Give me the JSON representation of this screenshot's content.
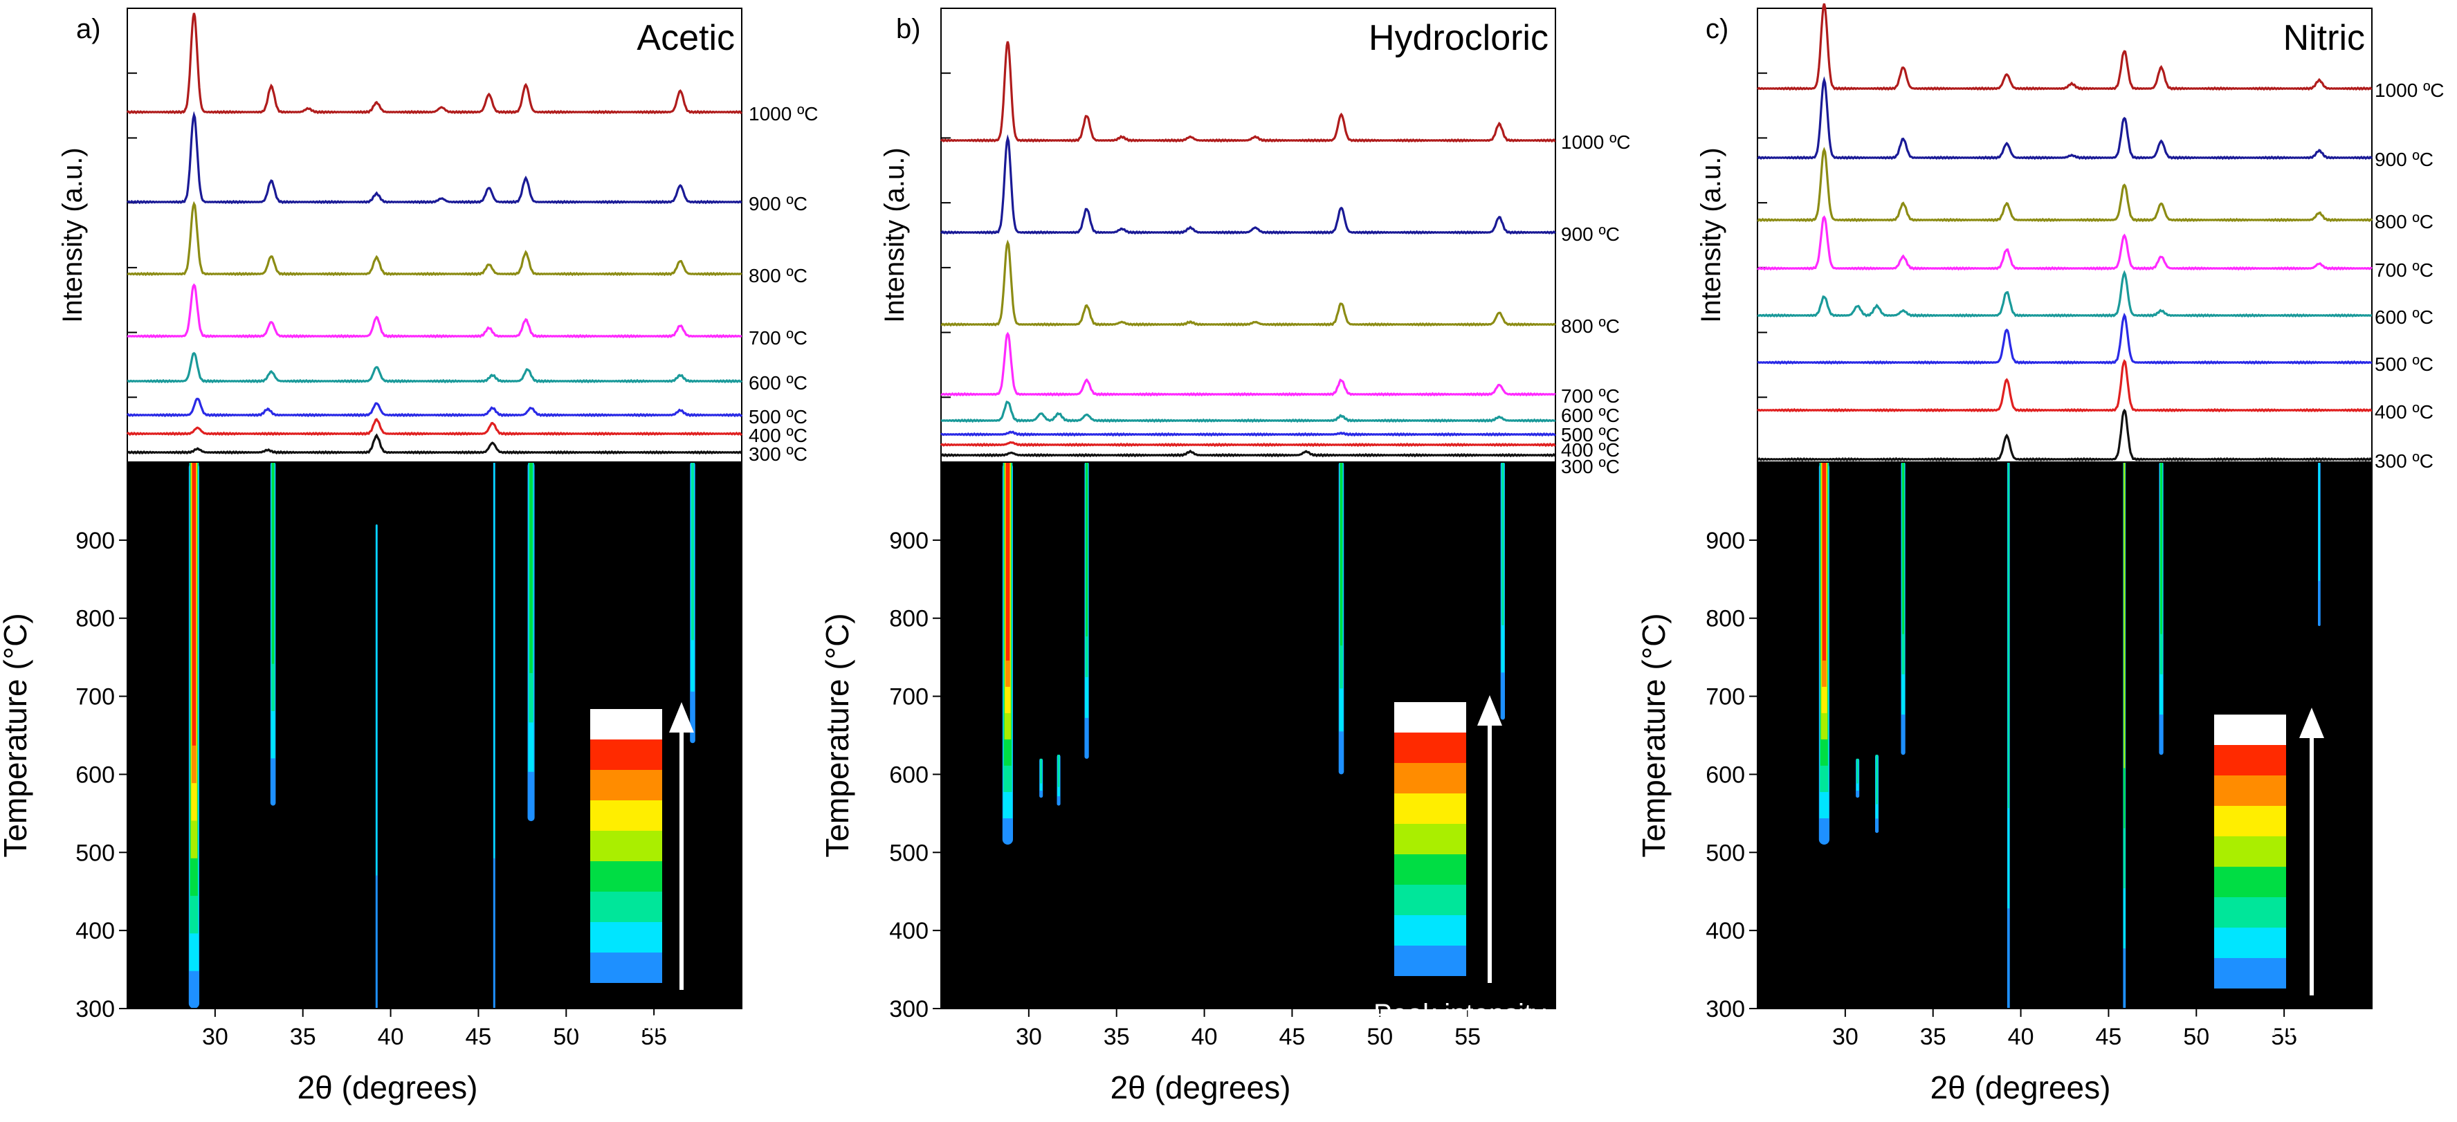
{
  "figure": {
    "xlabel": "2θ (degrees)",
    "xticks": [
      30,
      35,
      40,
      45,
      50,
      55
    ],
    "top_ylabel": "Intensity (a.u.)",
    "bottom_ylabel": "Temperature (°C)",
    "yticks": [
      300,
      400,
      500,
      600,
      700,
      800,
      900
    ],
    "legend_label": "Peak intensity",
    "xlim": [
      25,
      60
    ],
    "temp_lim": [
      300,
      1000
    ],
    "series_colors": {
      "300 ºC": "#111111",
      "400 ºC": "#e02020",
      "500 ºC": "#2a2ae6",
      "600 ºC": "#1a9a9a",
      "700 ºC": "#ff2aff",
      "800 ºC": "#8c8c14",
      "900 ºC": "#1a1a96",
      "1000 ºC": "#b01c1c"
    },
    "colormap": [
      "#1e90ff",
      "#00e5ff",
      "#00e69a",
      "#00dd44",
      "#aaee00",
      "#ffee00",
      "#ff8c00",
      "#ff2a00",
      "#ffffff"
    ]
  },
  "chart_data": [
    {
      "type": "line+heatmap",
      "panel_label": "a)",
      "title": "Acetic",
      "series": [
        {
          "name": "300 ºC",
          "peaks": [
            [
              29,
              0.15
            ],
            [
              33,
              0.1
            ],
            [
              39.2,
              0.7
            ],
            [
              45.8,
              0.4
            ]
          ]
        },
        {
          "name": "400 ºC",
          "peaks": [
            [
              29,
              0.25
            ],
            [
              39.2,
              0.6
            ],
            [
              45.8,
              0.45
            ]
          ]
        },
        {
          "name": "500 ºC",
          "peaks": [
            [
              29,
              0.7
            ],
            [
              33,
              0.25
            ],
            [
              39.2,
              0.5
            ],
            [
              45.8,
              0.3
            ],
            [
              48,
              0.3
            ],
            [
              56.5,
              0.2
            ]
          ]
        },
        {
          "name": "600 ºC",
          "peaks": [
            [
              28.8,
              1.2
            ],
            [
              33.2,
              0.4
            ],
            [
              39.2,
              0.6
            ],
            [
              45.8,
              0.25
            ],
            [
              47.8,
              0.5
            ],
            [
              56.5,
              0.25
            ]
          ]
        },
        {
          "name": "700 ºC",
          "peaks": [
            [
              28.8,
              2.2
            ],
            [
              33.2,
              0.6
            ],
            [
              39.2,
              0.8
            ],
            [
              45.6,
              0.35
            ],
            [
              47.7,
              0.7
            ],
            [
              56.5,
              0.45
            ]
          ]
        },
        {
          "name": "800 ºC",
          "peaks": [
            [
              28.8,
              3.0
            ],
            [
              33.2,
              0.75
            ],
            [
              39.2,
              0.7
            ],
            [
              45.6,
              0.4
            ],
            [
              47.7,
              0.9
            ],
            [
              56.5,
              0.55
            ]
          ]
        },
        {
          "name": "900 ºC",
          "peaks": [
            [
              28.8,
              3.7
            ],
            [
              33.2,
              0.9
            ],
            [
              39.2,
              0.35
            ],
            [
              42.9,
              0.15
            ],
            [
              45.6,
              0.6
            ],
            [
              47.7,
              1.0
            ],
            [
              56.5,
              0.7
            ]
          ]
        },
        {
          "name": "1000 ºC",
          "peaks": [
            [
              28.8,
              4.2
            ],
            [
              33.2,
              1.1
            ],
            [
              35.3,
              0.15
            ],
            [
              39.2,
              0.4
            ],
            [
              42.9,
              0.2
            ],
            [
              45.6,
              0.75
            ],
            [
              47.7,
              1.15
            ],
            [
              56.5,
              0.9
            ]
          ]
        }
      ],
      "heatmap_peaks": [
        {
          "x": 28.8,
          "from": 300,
          "to": 1000,
          "peak": 1.0,
          "width": 0.6
        },
        {
          "x": 33.3,
          "from": 560,
          "to": 1000,
          "peak": 0.4,
          "width": 0.3
        },
        {
          "x": 39.2,
          "from": 300,
          "to": 920,
          "peak": 0.15,
          "width": 0.12
        },
        {
          "x": 45.9,
          "from": 300,
          "to": 1000,
          "peak": 0.1,
          "width": 0.1
        },
        {
          "x": 48.0,
          "from": 540,
          "to": 1000,
          "peak": 0.4,
          "width": 0.4
        },
        {
          "x": 57.2,
          "from": 640,
          "to": 1000,
          "peak": 0.3,
          "width": 0.3
        }
      ]
    },
    {
      "type": "line+heatmap",
      "panel_label": "b)",
      "title": "Hydrocloric",
      "series": [
        {
          "name": "300 ºC",
          "peaks": [
            [
              29,
              0.1
            ],
            [
              39.2,
              0.15
            ],
            [
              45.8,
              0.15
            ]
          ]
        },
        {
          "name": "400 ºC",
          "peaks": [
            [
              29,
              0.1
            ]
          ]
        },
        {
          "name": "500 ºC",
          "peaks": [
            [
              29,
              0.1
            ],
            [
              47.8,
              0.05
            ]
          ]
        },
        {
          "name": "600 ºC",
          "peaks": [
            [
              28.8,
              0.8
            ],
            [
              30.7,
              0.3
            ],
            [
              31.7,
              0.3
            ],
            [
              33.3,
              0.25
            ],
            [
              47.8,
              0.2
            ],
            [
              56.8,
              0.15
            ]
          ]
        },
        {
          "name": "700 ºC",
          "peaks": [
            [
              28.8,
              2.6
            ],
            [
              33.3,
              0.6
            ],
            [
              47.8,
              0.6
            ],
            [
              56.8,
              0.4
            ]
          ]
        },
        {
          "name": "800 ºC",
          "peaks": [
            [
              28.8,
              3.5
            ],
            [
              33.3,
              0.8
            ],
            [
              35.3,
              0.1
            ],
            [
              39.2,
              0.1
            ],
            [
              42.9,
              0.1
            ],
            [
              47.8,
              0.9
            ],
            [
              56.8,
              0.5
            ]
          ]
        },
        {
          "name": "900 ºC",
          "peaks": [
            [
              28.8,
              4.0
            ],
            [
              33.3,
              1.0
            ],
            [
              35.3,
              0.15
            ],
            [
              39.2,
              0.2
            ],
            [
              42.9,
              0.2
            ],
            [
              47.8,
              1.05
            ],
            [
              56.8,
              0.65
            ]
          ]
        },
        {
          "name": "1000 ºC",
          "peaks": [
            [
              28.8,
              4.2
            ],
            [
              33.3,
              1.05
            ],
            [
              35.3,
              0.15
            ],
            [
              39.2,
              0.15
            ],
            [
              42.9,
              0.15
            ],
            [
              47.8,
              1.1
            ],
            [
              56.8,
              0.7
            ]
          ]
        }
      ],
      "heatmap_peaks": [
        {
          "x": 28.8,
          "from": 510,
          "to": 1000,
          "peak": 1.0,
          "width": 0.6
        },
        {
          "x": 30.7,
          "from": 570,
          "to": 620,
          "peak": 0.3,
          "width": 0.2
        },
        {
          "x": 31.7,
          "from": 560,
          "to": 625,
          "peak": 0.3,
          "width": 0.2
        },
        {
          "x": 33.3,
          "from": 620,
          "to": 1000,
          "peak": 0.4,
          "width": 0.25
        },
        {
          "x": 47.8,
          "from": 600,
          "to": 1000,
          "peak": 0.4,
          "width": 0.3
        },
        {
          "x": 57.0,
          "from": 670,
          "to": 1000,
          "peak": 0.35,
          "width": 0.25
        }
      ]
    },
    {
      "type": "line+heatmap",
      "panel_label": "c)",
      "title": "Nitric",
      "series": [
        {
          "name": "300 ºC",
          "peaks": [
            [
              39.2,
              1.0
            ],
            [
              45.9,
              2.1
            ]
          ]
        },
        {
          "name": "400 ºC",
          "peaks": [
            [
              39.2,
              1.3
            ],
            [
              45.9,
              2.1
            ]
          ]
        },
        {
          "name": "500 ºC",
          "peaks": [
            [
              39.2,
              1.4
            ],
            [
              45.9,
              2.0
            ]
          ]
        },
        {
          "name": "600 ºC",
          "peaks": [
            [
              28.8,
              0.8
            ],
            [
              30.7,
              0.4
            ],
            [
              31.8,
              0.4
            ],
            [
              33.3,
              0.2
            ],
            [
              39.2,
              1.0
            ],
            [
              45.9,
              1.8
            ],
            [
              48,
              0.2
            ]
          ]
        },
        {
          "name": "700 ºC",
          "peaks": [
            [
              28.8,
              2.2
            ],
            [
              33.3,
              0.5
            ],
            [
              39.2,
              0.8
            ],
            [
              45.9,
              1.4
            ],
            [
              48,
              0.5
            ],
            [
              57,
              0.2
            ]
          ]
        },
        {
          "name": "800 ºC",
          "peaks": [
            [
              28.8,
              3.0
            ],
            [
              33.3,
              0.7
            ],
            [
              39.2,
              0.7
            ],
            [
              45.9,
              1.5
            ],
            [
              48,
              0.7
            ],
            [
              57,
              0.3
            ]
          ]
        },
        {
          "name": "900 ºC",
          "peaks": [
            [
              28.8,
              3.3
            ],
            [
              33.3,
              0.8
            ],
            [
              39.2,
              0.6
            ],
            [
              42.9,
              0.1
            ],
            [
              45.9,
              1.7
            ],
            [
              48,
              0.7
            ],
            [
              57,
              0.3
            ]
          ]
        },
        {
          "name": "1000 ºC",
          "peaks": [
            [
              28.8,
              3.6
            ],
            [
              33.3,
              0.9
            ],
            [
              39.2,
              0.6
            ],
            [
              42.9,
              0.2
            ],
            [
              45.9,
              1.6
            ],
            [
              48,
              0.9
            ],
            [
              57,
              0.35
            ]
          ]
        }
      ],
      "heatmap_peaks": [
        {
          "x": 28.8,
          "from": 510,
          "to": 1000,
          "peak": 1.0,
          "width": 0.6
        },
        {
          "x": 30.7,
          "from": 570,
          "to": 620,
          "peak": 0.35,
          "width": 0.2
        },
        {
          "x": 31.8,
          "from": 525,
          "to": 625,
          "peak": 0.35,
          "width": 0.2
        },
        {
          "x": 33.3,
          "from": 625,
          "to": 1000,
          "peak": 0.4,
          "width": 0.25
        },
        {
          "x": 39.3,
          "from": 300,
          "to": 1000,
          "peak": 0.35,
          "width": 0.15
        },
        {
          "x": 45.9,
          "from": 300,
          "to": 1000,
          "peak": 0.5,
          "width": 0.15
        },
        {
          "x": 48.0,
          "from": 625,
          "to": 1000,
          "peak": 0.4,
          "width": 0.25
        },
        {
          "x": 57.0,
          "from": 790,
          "to": 1000,
          "peak": 0.2,
          "width": 0.15
        }
      ]
    }
  ]
}
